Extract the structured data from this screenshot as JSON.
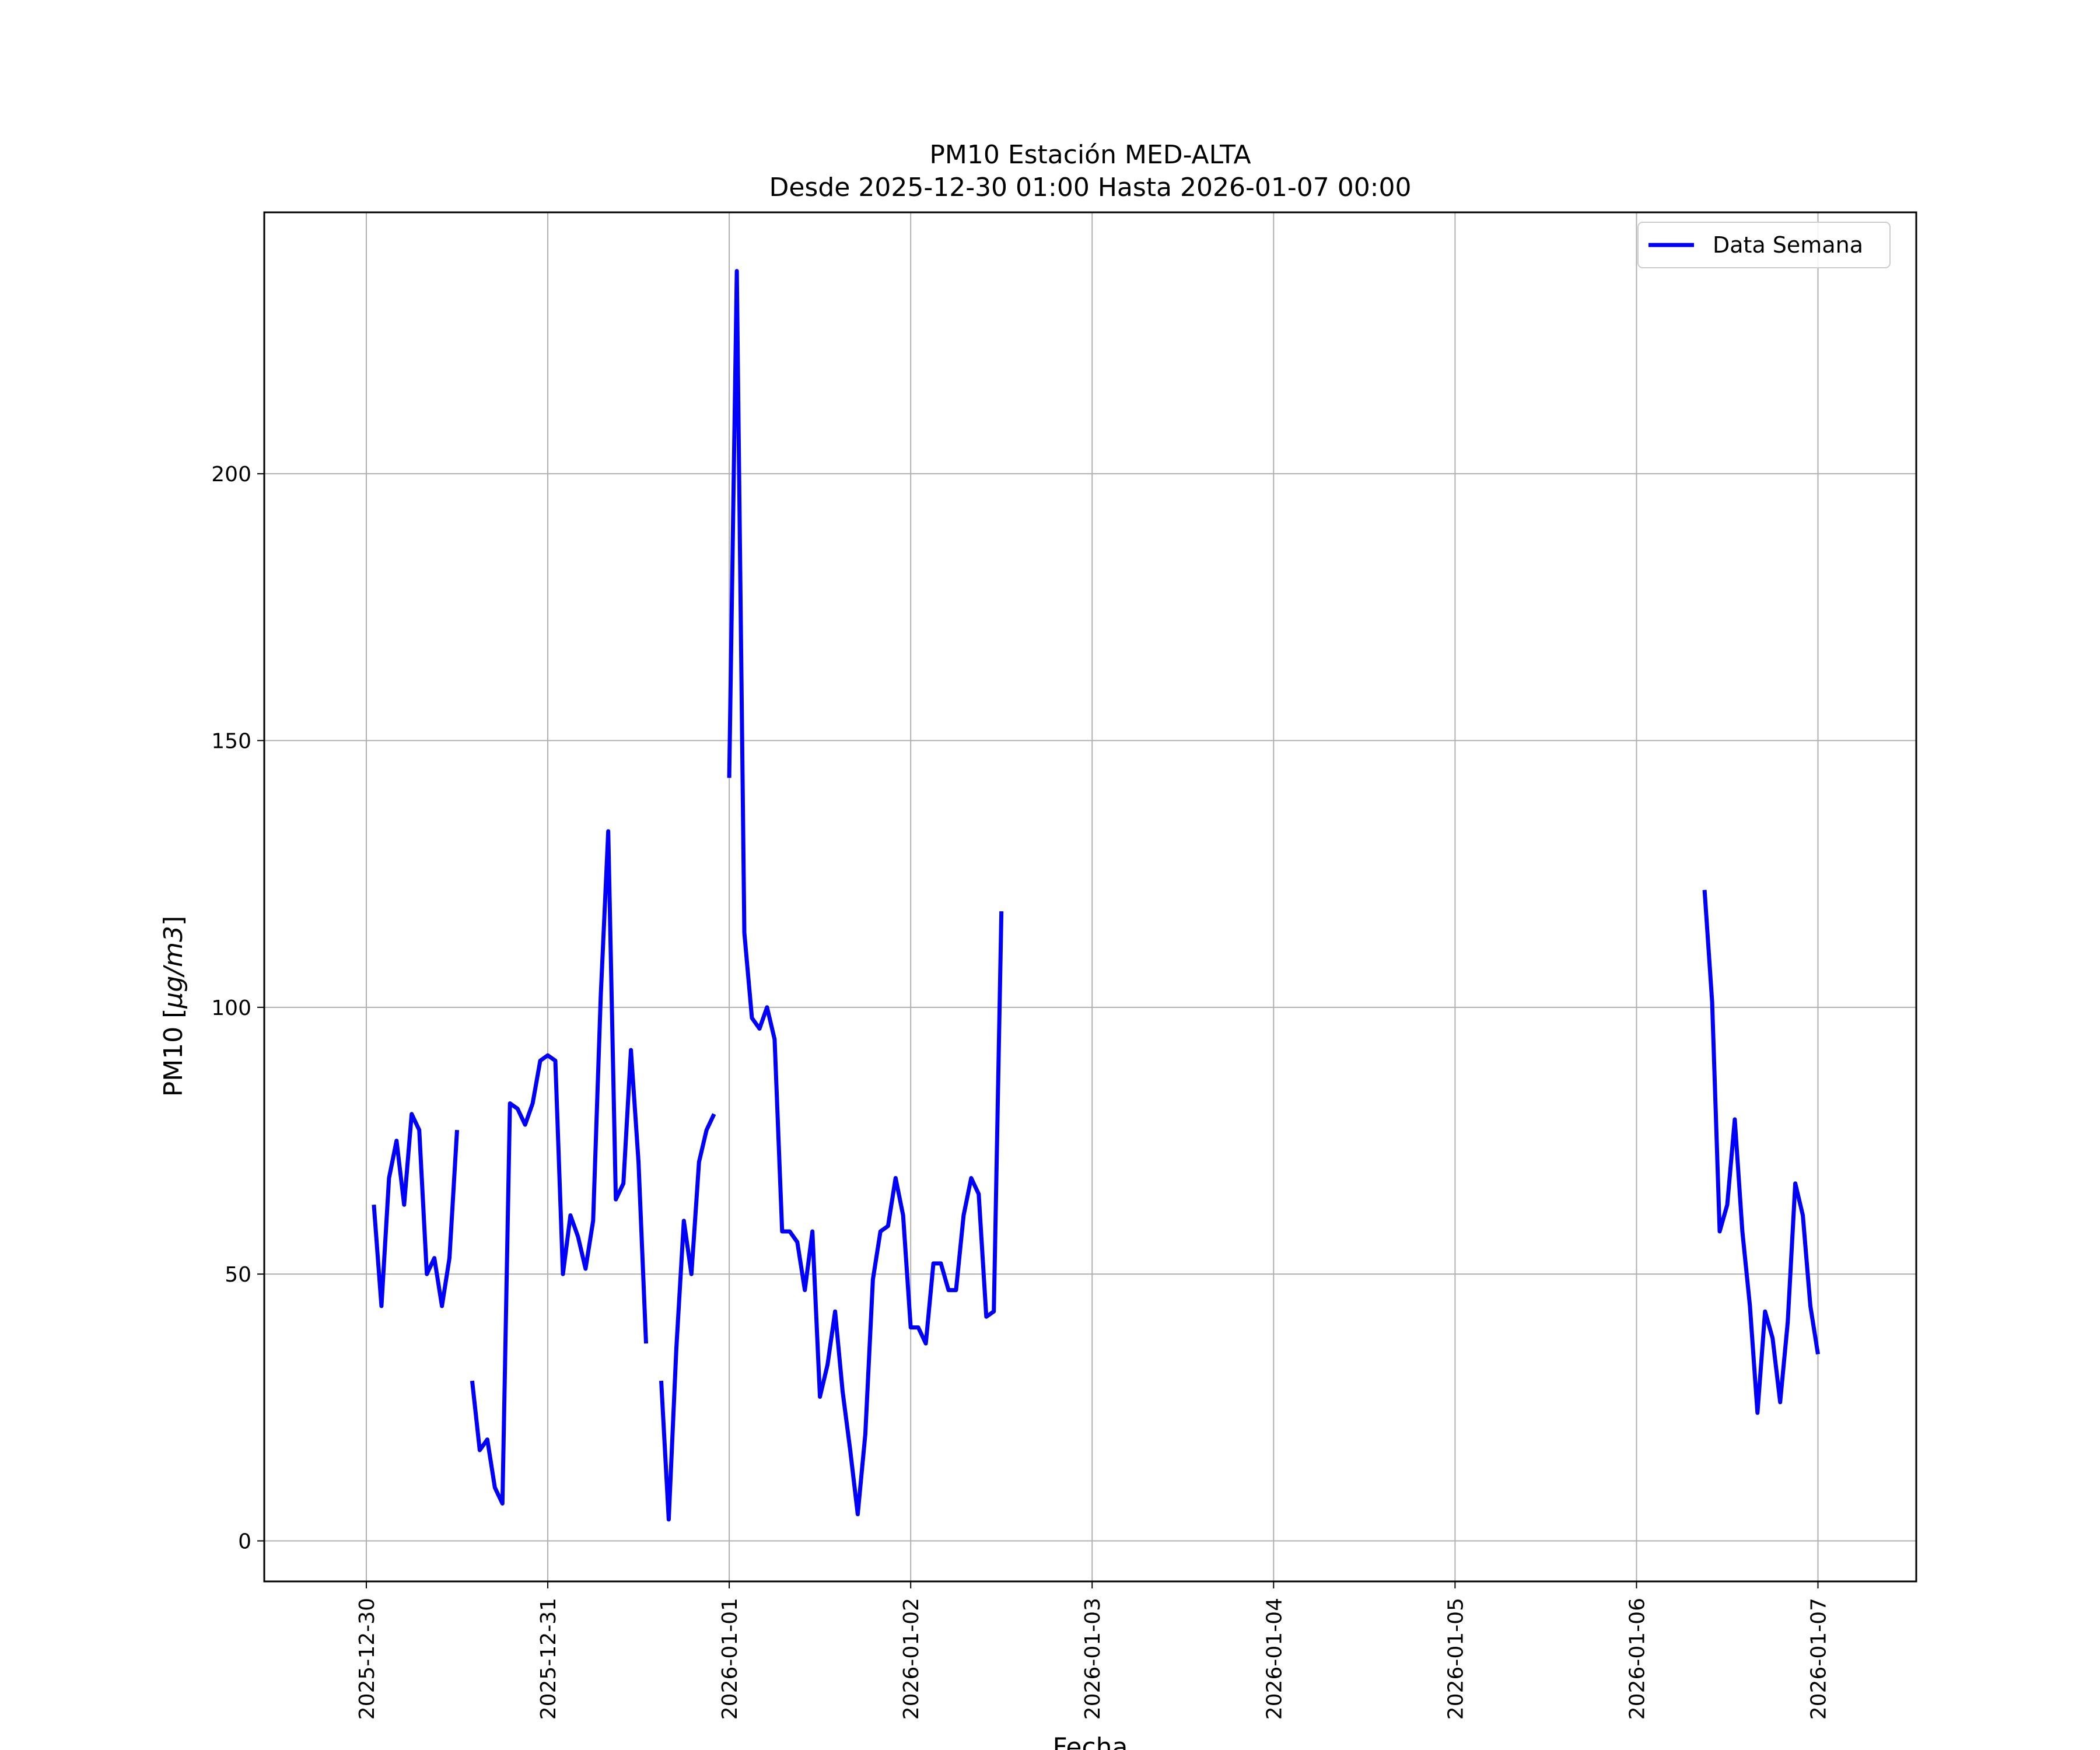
{
  "chart_data": {
    "type": "line",
    "title": "PM10 Estación MED-ALTA",
    "subtitle": "Desde 2025-12-30 01:00 Hasta 2026-01-07 00:00",
    "xlabel": "Fecha",
    "ylabel_prefix": "PM10 [",
    "ylabel_unit": "µg/m3",
    "ylabel_suffix": "]",
    "grid": true,
    "legend_position": "top-right",
    "line_color": "#0000ff",
    "ylim": [
      -7.6,
      249
    ],
    "xlim": [
      "2025-12-29 10:30",
      "2026-01-07 13:00"
    ],
    "yticks": [
      {
        "value": 0,
        "label": "0"
      },
      {
        "value": 50,
        "label": "50"
      },
      {
        "value": 100,
        "label": "100"
      },
      {
        "value": 150,
        "label": "150"
      },
      {
        "value": 200,
        "label": "200"
      }
    ],
    "xticks": [
      {
        "value": "2025-12-30 00:00",
        "label": "2025-12-30"
      },
      {
        "value": "2025-12-31 00:00",
        "label": "2025-12-31"
      },
      {
        "value": "2026-01-01 00:00",
        "label": "2026-01-01"
      },
      {
        "value": "2026-01-02 00:00",
        "label": "2026-01-02"
      },
      {
        "value": "2026-01-03 00:00",
        "label": "2026-01-03"
      },
      {
        "value": "2026-01-04 00:00",
        "label": "2026-01-04"
      },
      {
        "value": "2026-01-05 00:00",
        "label": "2026-01-05"
      },
      {
        "value": "2026-01-06 00:00",
        "label": "2026-01-06"
      },
      {
        "value": "2026-01-07 00:00",
        "label": "2026-01-07"
      }
    ],
    "series": [
      {
        "name": "Data Semana",
        "segments": [
          [
            [
              "2025-12-30 01:00",
              63
            ],
            [
              "2025-12-30 02:00",
              44
            ],
            [
              "2025-12-30 03:00",
              68
            ],
            [
              "2025-12-30 04:00",
              75
            ],
            [
              "2025-12-30 05:00",
              63
            ],
            [
              "2025-12-30 06:00",
              80
            ],
            [
              "2025-12-30 07:00",
              77
            ],
            [
              "2025-12-30 08:00",
              50
            ],
            [
              "2025-12-30 09:00",
              53
            ],
            [
              "2025-12-30 10:00",
              44
            ],
            [
              "2025-12-30 11:00",
              53
            ],
            [
              "2025-12-30 12:00",
              77
            ]
          ],
          [
            [
              "2025-12-30 14:00",
              30
            ],
            [
              "2025-12-30 15:00",
              17
            ],
            [
              "2025-12-30 16:00",
              19
            ],
            [
              "2025-12-30 17:00",
              10
            ],
            [
              "2025-12-30 18:00",
              7
            ],
            [
              "2025-12-30 19:00",
              82
            ],
            [
              "2025-12-30 20:00",
              81
            ],
            [
              "2025-12-30 21:00",
              78
            ],
            [
              "2025-12-30 22:00",
              82
            ],
            [
              "2025-12-30 23:00",
              90
            ],
            [
              "2025-12-31 00:00",
              91
            ],
            [
              "2025-12-31 01:00",
              90
            ],
            [
              "2025-12-31 02:00",
              50
            ],
            [
              "2025-12-31 03:00",
              61
            ],
            [
              "2025-12-31 04:00",
              57
            ],
            [
              "2025-12-31 05:00",
              51
            ],
            [
              "2025-12-31 06:00",
              60
            ],
            [
              "2025-12-31 07:00",
              102
            ],
            [
              "2025-12-31 08:00",
              133
            ],
            [
              "2025-12-31 09:00",
              64
            ],
            [
              "2025-12-31 10:00",
              67
            ],
            [
              "2025-12-31 11:00",
              92
            ],
            [
              "2025-12-31 12:00",
              71
            ],
            [
              "2025-12-31 13:00",
              37
            ]
          ],
          [
            [
              "2025-12-31 15:00",
              30
            ],
            [
              "2025-12-31 16:00",
              4
            ],
            [
              "2025-12-31 17:00",
              36
            ],
            [
              "2025-12-31 18:00",
              60
            ],
            [
              "2025-12-31 19:00",
              50
            ],
            [
              "2025-12-31 20:00",
              71
            ],
            [
              "2025-12-31 21:00",
              77
            ],
            [
              "2025-12-31 22:00",
              80
            ]
          ],
          [
            [
              "2026-01-01 00:00",
              143
            ],
            [
              "2026-01-01 01:00",
              238
            ],
            [
              "2026-01-01 02:00",
              114
            ],
            [
              "2026-01-01 03:00",
              98
            ],
            [
              "2026-01-01 04:00",
              96
            ],
            [
              "2026-01-01 05:00",
              100
            ],
            [
              "2026-01-01 06:00",
              94
            ],
            [
              "2026-01-01 07:00",
              58
            ],
            [
              "2026-01-01 08:00",
              58
            ],
            [
              "2026-01-01 09:00",
              56
            ],
            [
              "2026-01-01 10:00",
              47
            ],
            [
              "2026-01-01 11:00",
              58
            ],
            [
              "2026-01-01 12:00",
              27
            ],
            [
              "2026-01-01 13:00",
              33
            ],
            [
              "2026-01-01 14:00",
              43
            ],
            [
              "2026-01-01 15:00",
              28
            ],
            [
              "2026-01-01 16:00",
              17
            ],
            [
              "2026-01-01 17:00",
              5
            ],
            [
              "2026-01-01 18:00",
              20
            ],
            [
              "2026-01-01 19:00",
              49
            ],
            [
              "2026-01-01 20:00",
              58
            ],
            [
              "2026-01-01 21:00",
              59
            ],
            [
              "2026-01-01 22:00",
              68
            ],
            [
              "2026-01-01 23:00",
              61
            ],
            [
              "2026-01-02 00:00",
              40
            ],
            [
              "2026-01-02 01:00",
              40
            ],
            [
              "2026-01-02 02:00",
              37
            ],
            [
              "2026-01-02 03:00",
              52
            ],
            [
              "2026-01-02 04:00",
              52
            ],
            [
              "2026-01-02 05:00",
              47
            ],
            [
              "2026-01-02 06:00",
              47
            ],
            [
              "2026-01-02 07:00",
              61
            ],
            [
              "2026-01-02 08:00",
              68
            ],
            [
              "2026-01-02 09:00",
              65
            ],
            [
              "2026-01-02 10:00",
              42
            ],
            [
              "2026-01-02 11:00",
              43
            ],
            [
              "2026-01-02 12:00",
              118
            ]
          ],
          [
            [
              "2026-01-06 09:00",
              122
            ],
            [
              "2026-01-06 10:00",
              101
            ],
            [
              "2026-01-06 11:00",
              58
            ],
            [
              "2026-01-06 12:00",
              63
            ],
            [
              "2026-01-06 13:00",
              79
            ],
            [
              "2026-01-06 14:00",
              58
            ],
            [
              "2026-01-06 15:00",
              44
            ],
            [
              "2026-01-06 16:00",
              24
            ],
            [
              "2026-01-06 17:00",
              43
            ],
            [
              "2026-01-06 18:00",
              38
            ],
            [
              "2026-01-06 19:00",
              26
            ],
            [
              "2026-01-06 20:00",
              41
            ],
            [
              "2026-01-06 21:00",
              67
            ],
            [
              "2026-01-06 22:00",
              61
            ],
            [
              "2026-01-06 23:00",
              44
            ],
            [
              "2026-01-07 00:00",
              35
            ]
          ]
        ]
      }
    ]
  }
}
